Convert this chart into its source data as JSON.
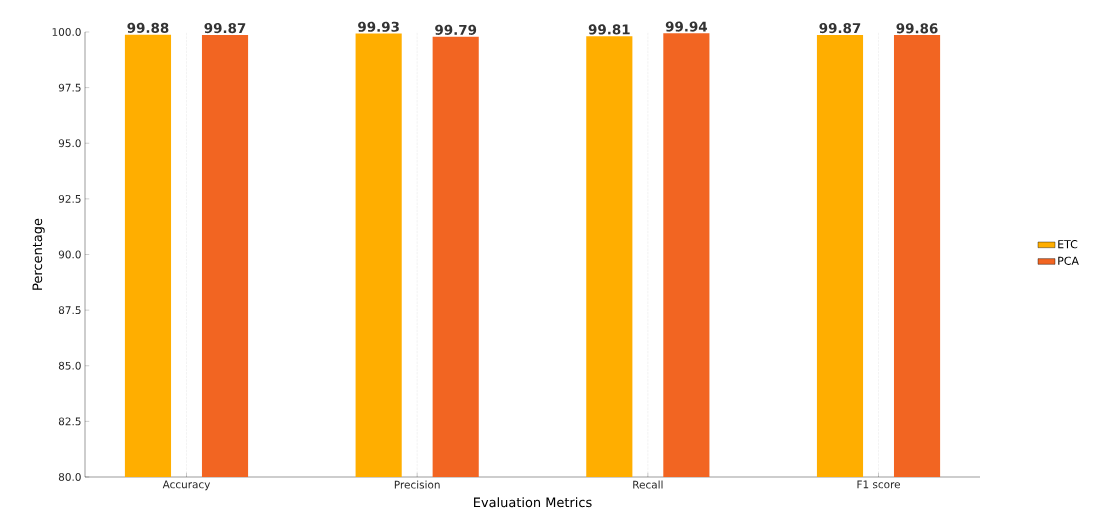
{
  "chart_data": {
    "type": "bar",
    "xlabel": "Evaluation Metrics",
    "ylabel": "Percentage",
    "categories": [
      "Accuracy",
      "Precision",
      "Recall",
      "F1 score"
    ],
    "series": [
      {
        "name": "ETC",
        "color": "#ffae00",
        "values": [
          99.88,
          99.93,
          99.81,
          99.87
        ]
      },
      {
        "name": "PCA",
        "color": "#f26522",
        "values": [
          99.87,
          99.79,
          99.94,
          99.86
        ]
      }
    ],
    "ylim": [
      80,
      100
    ],
    "yticks": [
      {
        "value": 80,
        "label": "80.0"
      },
      {
        "value": 82.5,
        "label": "82.5"
      },
      {
        "value": 85,
        "label": "85.0"
      },
      {
        "value": 87.5,
        "label": "87.5"
      },
      {
        "value": 90,
        "label": "90.0"
      },
      {
        "value": 92.5,
        "label": "92.5"
      },
      {
        "value": 95,
        "label": "95.0"
      },
      {
        "value": 97.5,
        "label": "97.5"
      },
      {
        "value": 100,
        "label": "100.0"
      }
    ],
    "grid": "x",
    "legend": "right",
    "data_labels": true
  }
}
